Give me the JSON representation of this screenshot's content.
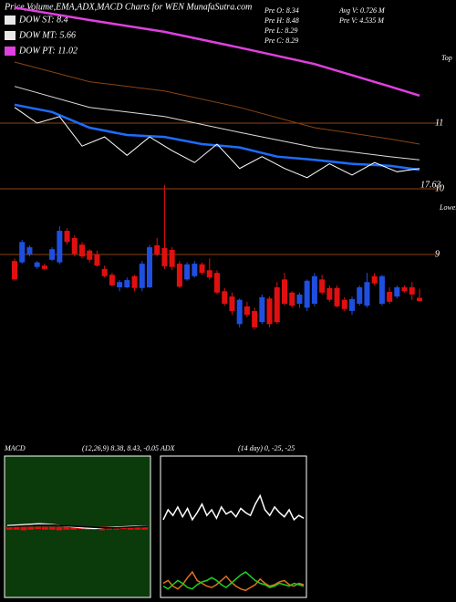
{
  "chart_data": [
    {
      "type": "candlestick",
      "title": "Price,Volume,EMA,ADX,MACD Charts for WEN  MunafaSutra.com",
      "legend": [
        {
          "label": "DOW ST: 8.4",
          "color": "#e8e8e8"
        },
        {
          "label": "DOW MT: 5.66",
          "color": "#e8e8e8"
        },
        {
          "label": "DOW PT: 11.02",
          "color": "#e040e0"
        }
      ],
      "info": [
        "Pre  O: 8.34",
        "Pre  H: 8.48",
        "Pre  L: 8.29",
        "Pre  C: 8.29",
        "Avg V: 0.726  M",
        "Pre  V: 4.535  M"
      ],
      "annotations": [
        "Top",
        "Lower",
        "17.63"
      ],
      "up_color": "#1f4fe0",
      "down_color": "#e01010",
      "ylim": [
        7.875,
        12.875
      ],
      "yticks": [
        11,
        10,
        9
      ],
      "open": [
        8.9,
        8.88,
        9.0,
        8.81,
        8.83,
        8.92,
        8.88,
        9.36,
        9.25,
        9.15,
        9.06,
        9.0,
        8.78,
        8.69,
        8.5,
        8.5,
        8.67,
        8.49,
        8.5,
        9.14,
        9.1,
        9.07,
        8.86,
        8.62,
        8.67,
        8.85,
        8.76,
        8.72,
        8.44,
        8.36,
        7.94,
        8.21,
        8.14,
        7.97,
        8.33,
        8.5,
        8.62,
        8.42,
        8.25,
        8.19,
        8.25,
        8.62,
        8.49,
        8.49,
        8.31,
        8.14,
        8.25,
        8.22,
        8.67,
        8.25,
        8.43,
        8.36,
        8.5,
        8.5,
        8.34
      ],
      "high": [
        8.94,
        9.22,
        9.14,
        8.9,
        8.86,
        9.11,
        9.43,
        9.4,
        9.29,
        9.19,
        9.08,
        9.06,
        8.83,
        8.72,
        8.61,
        8.65,
        8.69,
        8.9,
        9.15,
        9.25,
        10.06,
        9.11,
        8.9,
        8.88,
        8.9,
        8.88,
        8.94,
        8.76,
        8.49,
        8.42,
        8.33,
        8.28,
        8.19,
        8.39,
        8.36,
        8.58,
        8.72,
        8.44,
        8.42,
        8.62,
        8.72,
        8.69,
        8.53,
        8.53,
        8.35,
        8.36,
        8.53,
        8.72,
        8.72,
        8.69,
        8.5,
        8.53,
        8.53,
        8.58,
        8.48
      ],
      "low": [
        8.6,
        8.86,
        8.97,
        8.78,
        8.76,
        8.9,
        8.85,
        9.15,
        8.97,
        8.94,
        8.88,
        8.81,
        8.65,
        8.51,
        8.44,
        8.49,
        8.44,
        8.44,
        8.49,
        8.97,
        8.78,
        8.76,
        8.49,
        8.6,
        8.65,
        8.69,
        8.62,
        8.39,
        8.22,
        8.08,
        7.89,
        8.04,
        7.86,
        7.94,
        7.89,
        7.94,
        8.22,
        8.19,
        8.19,
        8.14,
        8.21,
        8.39,
        8.28,
        8.19,
        8.14,
        8.08,
        8.22,
        8.19,
        8.53,
        8.22,
        8.25,
        8.33,
        8.42,
        8.31,
        8.29
      ],
      "close": [
        8.62,
        9.19,
        9.11,
        8.88,
        8.78,
        9.08,
        9.36,
        9.19,
        9.01,
        8.97,
        8.92,
        8.83,
        8.67,
        8.53,
        8.58,
        8.61,
        8.49,
        8.86,
        9.11,
        9.0,
        8.82,
        8.81,
        8.51,
        8.85,
        8.86,
        8.72,
        8.65,
        8.42,
        8.25,
        8.14,
        8.31,
        8.08,
        7.89,
        8.35,
        7.94,
        7.97,
        8.25,
        8.22,
        8.39,
        8.6,
        8.67,
        8.42,
        8.31,
        8.21,
        8.17,
        8.32,
        8.5,
        8.58,
        8.56,
        8.67,
        8.28,
        8.5,
        8.44,
        8.39,
        8.29
      ],
      "lines": [
        {
          "color": "#e040e0",
          "x": [
            0,
            10,
            20,
            30,
            40,
            50,
            54
          ],
          "values": [
            12.76,
            12.57,
            12.39,
            12.15,
            11.9,
            11.56,
            11.42
          ]
        },
        {
          "color": "#8b4513",
          "x": [
            0,
            10,
            20,
            30,
            40,
            50,
            54
          ],
          "values": [
            11.93,
            11.63,
            11.49,
            11.24,
            10.93,
            10.76,
            10.68
          ]
        },
        {
          "color": "#dddddd",
          "x": [
            0,
            10,
            20,
            30,
            40,
            50,
            54
          ],
          "values": [
            11.56,
            11.24,
            11.1,
            10.86,
            10.63,
            10.49,
            10.44
          ]
        },
        {
          "color": "#1e6cff",
          "x": [
            0,
            5,
            10,
            15,
            20,
            25,
            30,
            35,
            40,
            45,
            50,
            54
          ],
          "values": [
            11.28,
            11.17,
            10.93,
            10.82,
            10.79,
            10.68,
            10.63,
            10.49,
            10.44,
            10.38,
            10.35,
            10.29
          ]
        },
        {
          "color": "#ffffff",
          "x": [
            0,
            3,
            6,
            9,
            12,
            15,
            18,
            21,
            24,
            27,
            30,
            33,
            36,
            39,
            42,
            45,
            48,
            51,
            54
          ],
          "values": [
            11.24,
            11.0,
            11.1,
            10.65,
            10.79,
            10.51,
            10.79,
            10.58,
            10.4,
            10.68,
            10.31,
            10.49,
            10.31,
            10.17,
            10.38,
            10.21,
            10.4,
            10.26,
            10.31
          ]
        }
      ]
    },
    {
      "type": "line",
      "title": "MACD",
      "subtitle": "(12,26,9) 8.38, 8.43, -0.05",
      "background": "#0b3a0b",
      "ylim": [
        -1.2,
        1.2
      ],
      "histogram": {
        "color": "#e01010",
        "values": [
          -0.05,
          -0.05,
          -0.06,
          -0.05,
          -0.04,
          -0.05,
          -0.05,
          -0.06,
          -0.05,
          -0.05,
          -0.04,
          -0.05,
          -0.05,
          -0.06,
          -0.05,
          -0.05,
          -0.04,
          -0.05,
          -0.05,
          -0.05
        ]
      },
      "series": [
        {
          "color": "#ffffff",
          "values": [
            0.02,
            0.03,
            0.04,
            0.05,
            0.04,
            0.02,
            0.0,
            -0.02,
            -0.03,
            -0.02,
            -0.01,
            0.0,
            0.01,
            0.0
          ]
        },
        {
          "color": "#000000",
          "values": [
            0.0,
            0.01,
            0.02,
            0.03,
            0.03,
            0.02,
            0.01,
            0.0,
            -0.01,
            -0.02,
            -0.02,
            -0.01,
            0.0,
            0.0
          ]
        }
      ]
    },
    {
      "type": "line",
      "title": "ADX",
      "subtitle": "(14 day) 0, -25, -25",
      "background": "#000000",
      "ylim": [
        0,
        100
      ],
      "series": [
        {
          "color": "#ffffff",
          "values": [
            55,
            62,
            58,
            64,
            57,
            63,
            55,
            60,
            66,
            58,
            62,
            56,
            64,
            59,
            61,
            57,
            63,
            60,
            58,
            66,
            72,
            62,
            58,
            64,
            60,
            57,
            62,
            55,
            58,
            56
          ]
        },
        {
          "color": "#e07020",
          "values": [
            10,
            12,
            8,
            6,
            9,
            14,
            18,
            12,
            10,
            8,
            7,
            9,
            12,
            15,
            11,
            8,
            6,
            5,
            7,
            9,
            13,
            10,
            8,
            9,
            11,
            12,
            9,
            8,
            10,
            9
          ]
        },
        {
          "color": "#20d020",
          "values": [
            8,
            6,
            9,
            12,
            10,
            7,
            6,
            9,
            11,
            12,
            14,
            12,
            9,
            7,
            10,
            13,
            16,
            18,
            15,
            12,
            10,
            9,
            7,
            8,
            10,
            9,
            8,
            10,
            9,
            8
          ]
        }
      ]
    }
  ]
}
